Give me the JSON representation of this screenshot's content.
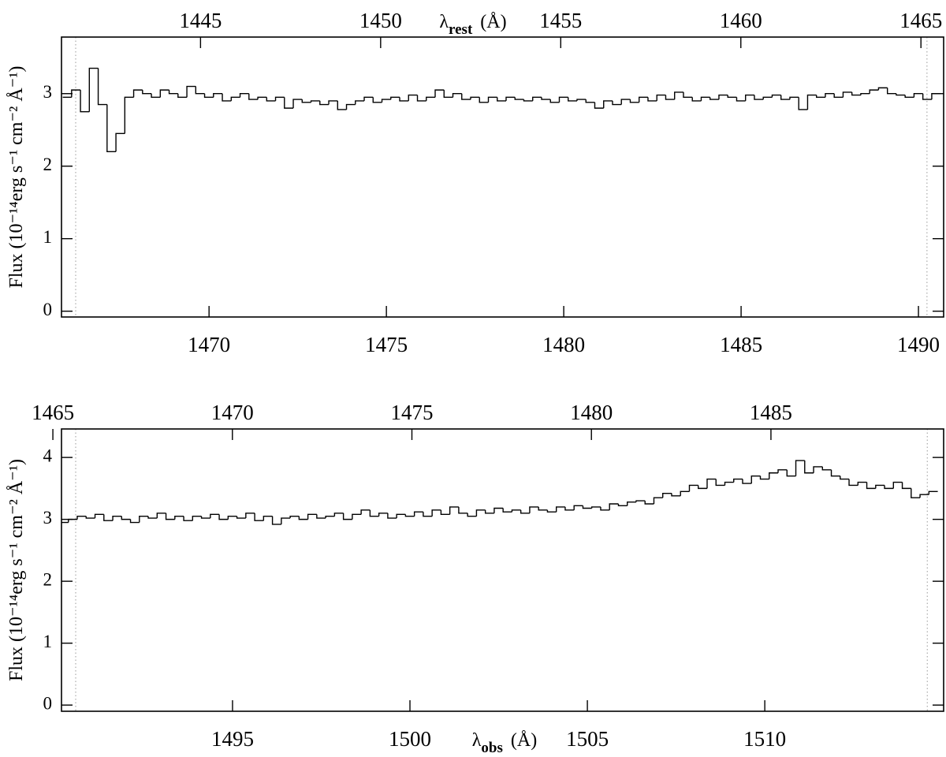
{
  "chart_data": [
    {
      "type": "line",
      "step": true,
      "x2label": {
        "symbol": "λ",
        "subscript": "rest",
        "unit": "(Å)"
      },
      "ylabel": "Flux (10⁻¹⁴erg s⁻¹ cm⁻² Å⁻¹)",
      "x": [
        1466.0,
        1466.25,
        1466.5,
        1466.75,
        1467.0,
        1467.25,
        1467.5,
        1467.75,
        1468.0,
        1468.25,
        1468.5,
        1468.75,
        1469.0,
        1469.25,
        1469.5,
        1469.75,
        1470.0,
        1470.25,
        1470.5,
        1470.75,
        1471.0,
        1471.25,
        1471.5,
        1471.75,
        1472.0,
        1472.25,
        1472.5,
        1472.75,
        1473.0,
        1473.25,
        1473.5,
        1473.75,
        1474.0,
        1474.25,
        1474.5,
        1474.75,
        1475.0,
        1475.25,
        1475.5,
        1475.75,
        1476.0,
        1476.25,
        1476.5,
        1476.75,
        1477.0,
        1477.25,
        1477.5,
        1477.75,
        1478.0,
        1478.25,
        1478.5,
        1478.75,
        1479.0,
        1479.25,
        1479.5,
        1479.75,
        1480.0,
        1480.25,
        1480.5,
        1480.75,
        1481.0,
        1481.25,
        1481.5,
        1481.75,
        1482.0,
        1482.25,
        1482.5,
        1482.75,
        1483.0,
        1483.25,
        1483.5,
        1483.75,
        1484.0,
        1484.25,
        1484.5,
        1484.75,
        1485.0,
        1485.25,
        1485.5,
        1485.75,
        1486.0,
        1486.25,
        1486.5,
        1486.75,
        1487.0,
        1487.25,
        1487.5,
        1487.75,
        1488.0,
        1488.25,
        1488.5,
        1488.75,
        1489.0,
        1489.25,
        1489.5,
        1489.75,
        1490.0,
        1490.25,
        1490.5
      ],
      "series": [
        {
          "color": "#000000",
          "values": [
            2.95,
            3.05,
            2.75,
            3.35,
            2.85,
            2.2,
            2.45,
            2.95,
            3.05,
            3.0,
            2.95,
            3.05,
            3.0,
            2.95,
            3.1,
            3.0,
            2.95,
            3.0,
            2.9,
            2.95,
            3.0,
            2.92,
            2.95,
            2.9,
            2.95,
            2.8,
            2.92,
            2.88,
            2.9,
            2.85,
            2.9,
            2.78,
            2.85,
            2.9,
            2.95,
            2.88,
            2.92,
            2.95,
            2.9,
            2.98,
            2.9,
            2.95,
            3.05,
            2.95,
            3.0,
            2.92,
            2.95,
            2.88,
            2.95,
            2.9,
            2.95,
            2.92,
            2.9,
            2.95,
            2.92,
            2.88,
            2.95,
            2.9,
            2.92,
            2.88,
            2.8,
            2.9,
            2.85,
            2.92,
            2.88,
            2.95,
            2.9,
            2.98,
            2.92,
            3.02,
            2.95,
            2.9,
            2.95,
            2.92,
            2.98,
            2.95,
            2.9,
            2.98,
            2.92,
            2.95,
            2.98,
            2.92,
            2.95,
            2.78,
            2.98,
            2.95,
            3.0,
            2.95,
            3.02,
            2.98,
            3.0,
            3.05,
            3.08,
            3.0,
            2.98,
            2.95,
            3.0,
            2.92,
            3.0
          ]
        }
      ],
      "xlim": [
        1465.84,
        1490.71
      ],
      "xticks": [
        1470,
        1475,
        1480,
        1485,
        1490
      ],
      "x2lim": [
        1441.14,
        1465.63
      ],
      "x2ticks": [
        1445,
        1450,
        1455,
        1460,
        1465
      ],
      "ylim": [
        -0.08,
        3.78
      ],
      "yticks": [
        0,
        1,
        2,
        3
      ],
      "vlines": {
        "x": [
          1466.24,
          1490.24
        ],
        "color": "#aaaaaa"
      }
    },
    {
      "type": "line",
      "step": true,
      "xlabel": {
        "symbol": "λ",
        "subscript": "obs",
        "unit": "(Å)"
      },
      "ylabel": "Flux (10⁻¹⁴erg s⁻¹ cm⁻² Å⁻¹)",
      "x": [
        1490.25,
        1490.5,
        1490.75,
        1491.0,
        1491.25,
        1491.5,
        1491.75,
        1492.0,
        1492.25,
        1492.5,
        1492.75,
        1493.0,
        1493.25,
        1493.5,
        1493.75,
        1494.0,
        1494.25,
        1494.5,
        1494.75,
        1495.0,
        1495.25,
        1495.5,
        1495.75,
        1496.0,
        1496.25,
        1496.5,
        1496.75,
        1497.0,
        1497.25,
        1497.5,
        1497.75,
        1498.0,
        1498.25,
        1498.5,
        1498.75,
        1499.0,
        1499.25,
        1499.5,
        1499.75,
        1500.0,
        1500.25,
        1500.5,
        1500.75,
        1501.0,
        1501.25,
        1501.5,
        1501.75,
        1502.0,
        1502.25,
        1502.5,
        1502.75,
        1503.0,
        1503.25,
        1503.5,
        1503.75,
        1504.0,
        1504.25,
        1504.5,
        1504.75,
        1505.0,
        1505.25,
        1505.5,
        1505.75,
        1506.0,
        1506.25,
        1506.5,
        1506.75,
        1507.0,
        1507.25,
        1507.5,
        1507.75,
        1508.0,
        1508.25,
        1508.5,
        1508.75,
        1509.0,
        1509.25,
        1509.5,
        1509.75,
        1510.0,
        1510.25,
        1510.5,
        1510.75,
        1511.0,
        1511.25,
        1511.5,
        1511.75,
        1512.0,
        1512.25,
        1512.5,
        1512.75,
        1513.0,
        1513.25,
        1513.5,
        1513.75,
        1514.0,
        1514.25,
        1514.5,
        1514.75
      ],
      "series": [
        {
          "color": "#000000",
          "values": [
            2.95,
            3.0,
            3.05,
            3.02,
            3.08,
            2.98,
            3.05,
            3.0,
            2.95,
            3.05,
            3.02,
            3.1,
            3.0,
            3.05,
            2.98,
            3.05,
            3.02,
            3.08,
            3.0,
            3.05,
            3.02,
            3.1,
            2.98,
            3.05,
            2.92,
            3.02,
            3.05,
            3.0,
            3.08,
            3.02,
            3.05,
            3.1,
            3.0,
            3.08,
            3.15,
            3.05,
            3.1,
            3.02,
            3.08,
            3.05,
            3.12,
            3.05,
            3.15,
            3.08,
            3.2,
            3.1,
            3.05,
            3.15,
            3.1,
            3.18,
            3.12,
            3.15,
            3.1,
            3.2,
            3.15,
            3.12,
            3.2,
            3.15,
            3.22,
            3.18,
            3.2,
            3.15,
            3.25,
            3.22,
            3.28,
            3.3,
            3.25,
            3.35,
            3.42,
            3.38,
            3.45,
            3.55,
            3.5,
            3.65,
            3.55,
            3.6,
            3.65,
            3.58,
            3.7,
            3.65,
            3.75,
            3.8,
            3.7,
            3.95,
            3.75,
            3.85,
            3.8,
            3.7,
            3.65,
            3.55,
            3.6,
            3.5,
            3.55,
            3.5,
            3.6,
            3.5,
            3.35,
            3.4,
            3.45
          ]
        }
      ],
      "xlim": [
        1490.18,
        1515.04
      ],
      "xticks": [
        1495,
        1500,
        1505,
        1510
      ],
      "x2lim": [
        1465.24,
        1489.81
      ],
      "x2ticks": [
        1465,
        1470,
        1475,
        1480,
        1485
      ],
      "ylim": [
        -0.1,
        4.46
      ],
      "yticks": [
        0,
        1,
        2,
        3,
        4
      ],
      "vlines": {
        "x": [
          1490.58,
          1514.58
        ],
        "color": "#aaaaaa"
      }
    }
  ]
}
